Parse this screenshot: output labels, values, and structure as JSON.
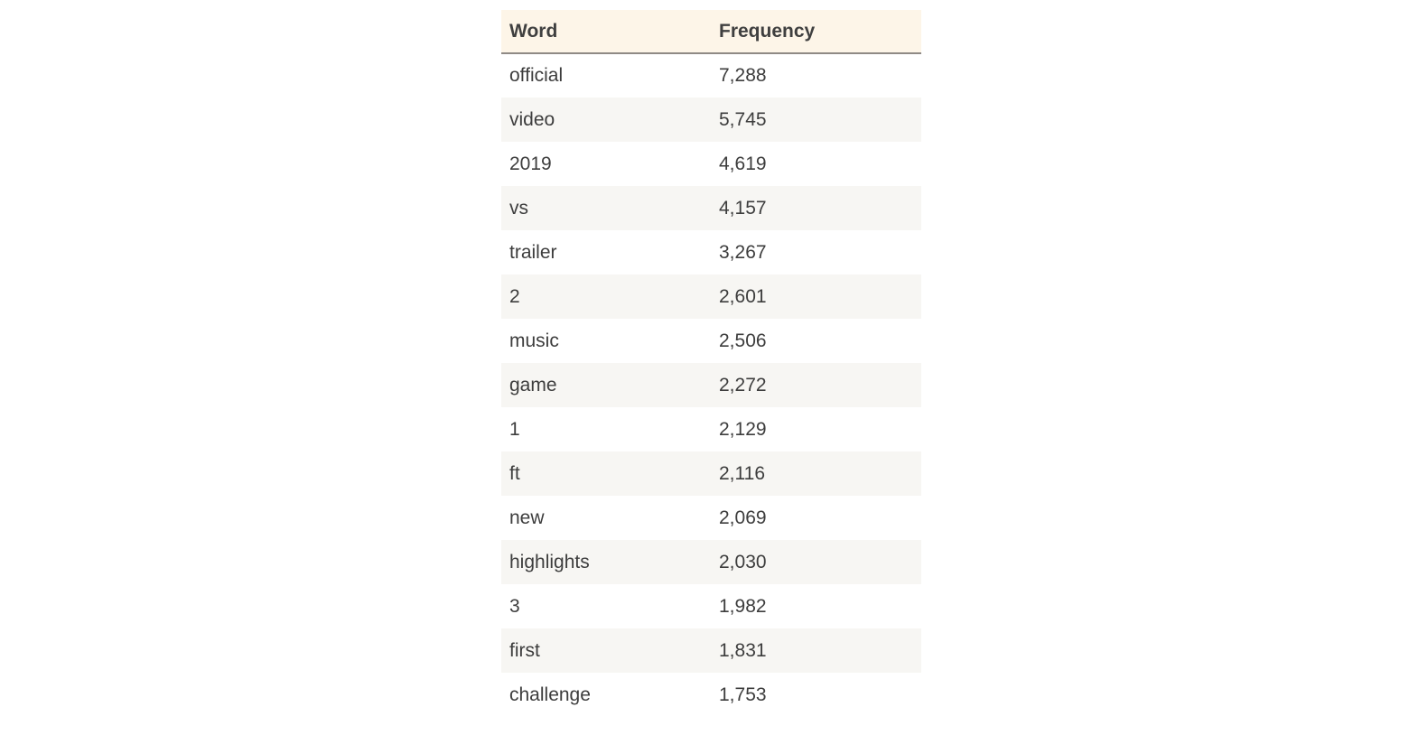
{
  "table": {
    "columns": [
      "Word",
      "Frequency"
    ],
    "rows": [
      {
        "word": "official",
        "frequency": "7,288"
      },
      {
        "word": "video",
        "frequency": "5,745"
      },
      {
        "word": "2019",
        "frequency": "4,619"
      },
      {
        "word": "vs",
        "frequency": "4,157"
      },
      {
        "word": "trailer",
        "frequency": "3,267"
      },
      {
        "word": "2",
        "frequency": "2,601"
      },
      {
        "word": "music",
        "frequency": "2,506"
      },
      {
        "word": "game",
        "frequency": "2,272"
      },
      {
        "word": "1",
        "frequency": "2,129"
      },
      {
        "word": "ft",
        "frequency": "2,116"
      },
      {
        "word": "new",
        "frequency": "2,069"
      },
      {
        "word": "highlights",
        "frequency": "2,030"
      },
      {
        "word": "3",
        "frequency": "1,982"
      },
      {
        "word": "first",
        "frequency": "1,831"
      },
      {
        "word": "challenge",
        "frequency": "1,753"
      }
    ]
  }
}
